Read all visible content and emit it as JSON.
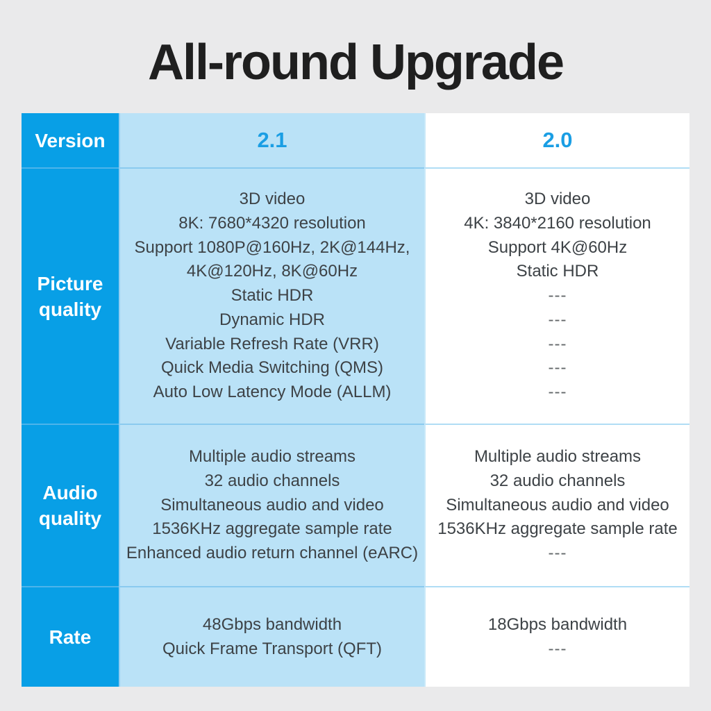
{
  "title": "All-round Upgrade",
  "chart_data": {
    "type": "table",
    "title": "All-round Upgrade",
    "columns": [
      "Version",
      "2.1",
      "2.0"
    ],
    "rows": [
      {
        "label": [
          "Picture",
          "quality"
        ],
        "v21": [
          "3D video",
          "8K: 7680*4320 resolution",
          "Support 1080P@160Hz, 2K@144Hz,",
          "4K@120Hz, 8K@60Hz",
          "Static HDR",
          "Dynamic HDR",
          "Variable Refresh Rate (VRR)",
          "Quick Media Switching (QMS)",
          "Auto Low Latency Mode (ALLM)"
        ],
        "v20": [
          "3D video",
          "4K: 3840*2160 resolution",
          "Support 4K@60Hz",
          "Static HDR",
          "---",
          "---",
          "---",
          "---",
          "---"
        ]
      },
      {
        "label": [
          "Audio",
          "quality"
        ],
        "v21": [
          "Multiple audio streams",
          "32 audio channels",
          "Simultaneous audio and video",
          "1536KHz aggregate sample rate",
          "Enhanced audio return channel (eARC)"
        ],
        "v20": [
          "Multiple audio streams",
          "32 audio channels",
          "Simultaneous audio and video",
          "1536KHz aggregate sample rate",
          "---"
        ]
      },
      {
        "label": [
          "Rate"
        ],
        "v21": [
          "48Gbps bandwidth",
          "Quick Frame Transport (QFT)"
        ],
        "v20": [
          "18Gbps bandwidth",
          "---"
        ]
      }
    ]
  },
  "colors": {
    "accent_blue": "#089fe6",
    "light_blue": "#bae2f7",
    "version_text_blue": "#1a9ee4",
    "cell_text": "#3d4246",
    "label_text": "#ffffff",
    "background": "#eaeaeb",
    "title_text": "#1f1f1f"
  }
}
